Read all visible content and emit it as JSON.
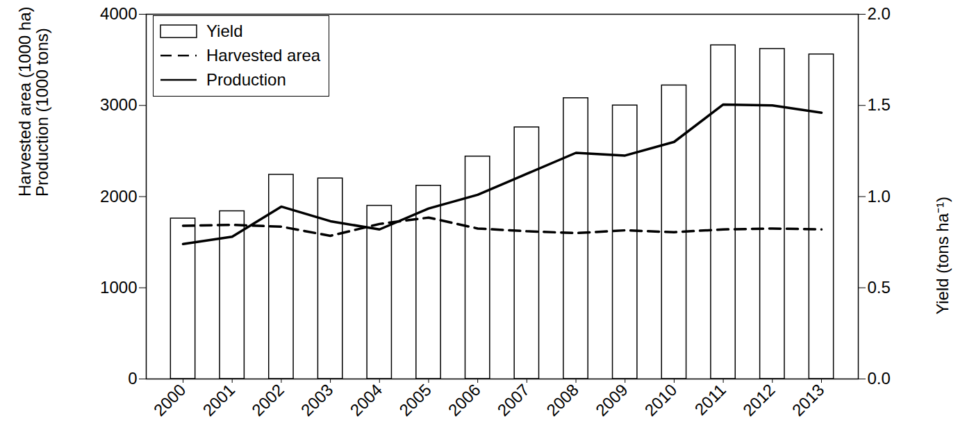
{
  "chart_data": {
    "type": "bar_line",
    "categories": [
      "2000",
      "2001",
      "2002",
      "2003",
      "2004",
      "2005",
      "2006",
      "2007",
      "2008",
      "2009",
      "2010",
      "2011",
      "2012",
      "2013"
    ],
    "y_label": "Harvested area (1000 ha)\nProduction (1000 tons)",
    "y2_label": "Yield (tons ha⁻¹)",
    "ylim": [
      0,
      4000
    ],
    "yticks": [
      0,
      1000,
      2000,
      3000,
      4000
    ],
    "y2lim": [
      0,
      2
    ],
    "y2ticks": [
      {
        "value": 0,
        "label": "0.0"
      },
      0.5,
      {
        "value": 1,
        "label": "1.0"
      },
      1.5,
      {
        "value": 2,
        "label": "2.0"
      }
    ],
    "legend": "upper left",
    "series": [
      {
        "name": "Yield",
        "type": "bar",
        "axis": "y2",
        "color": "#ffffff",
        "values": [
          0.88,
          0.92,
          1.12,
          1.1,
          0.95,
          1.06,
          1.22,
          1.38,
          1.54,
          1.5,
          1.61,
          1.83,
          1.81,
          1.78
        ]
      },
      {
        "name": "Harvested area",
        "type": "line",
        "line_style": "dashed",
        "color": "#000000",
        "values": [
          1680,
          1690,
          1670,
          1570,
          1700,
          1770,
          1650,
          1620,
          1600,
          1630,
          1610,
          1640,
          1650,
          1640
        ]
      },
      {
        "name": "Production",
        "type": "line",
        "line_style": "solid",
        "color": "#000000",
        "values": [
          1480,
          1560,
          1890,
          1730,
          1640,
          1870,
          2020,
          2250,
          2480,
          2450,
          2600,
          3010,
          3000,
          2920
        ]
      }
    ]
  }
}
